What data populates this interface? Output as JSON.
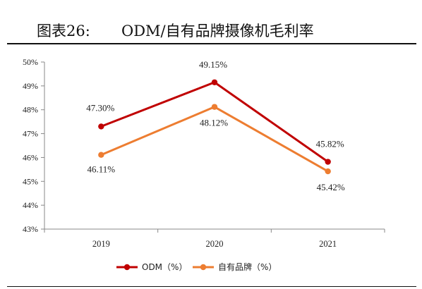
{
  "figure": {
    "number_label": "图表26:",
    "title": "ODM/自有品牌摄像机毛利率"
  },
  "chart_data": {
    "type": "line",
    "x": [
      "2019",
      "2020",
      "2021"
    ],
    "ylim": [
      43,
      50
    ],
    "y_ticks": [
      "43%",
      "44%",
      "45%",
      "46%",
      "47%",
      "48%",
      "49%",
      "50%"
    ],
    "y_unit": "%",
    "legend_position": "bottom",
    "grid": false,
    "series": [
      {
        "name": "ODM（%）",
        "color": "#C00000",
        "values": [
          47.3,
          49.15,
          45.82
        ],
        "labels": [
          "47.30%",
          "49.15%",
          "45.82%"
        ]
      },
      {
        "name": "自有品牌（%）",
        "color": "#ED7D31",
        "values": [
          46.11,
          48.12,
          45.42
        ],
        "labels": [
          "46.11%",
          "48.12%",
          "45.42%"
        ]
      }
    ]
  }
}
